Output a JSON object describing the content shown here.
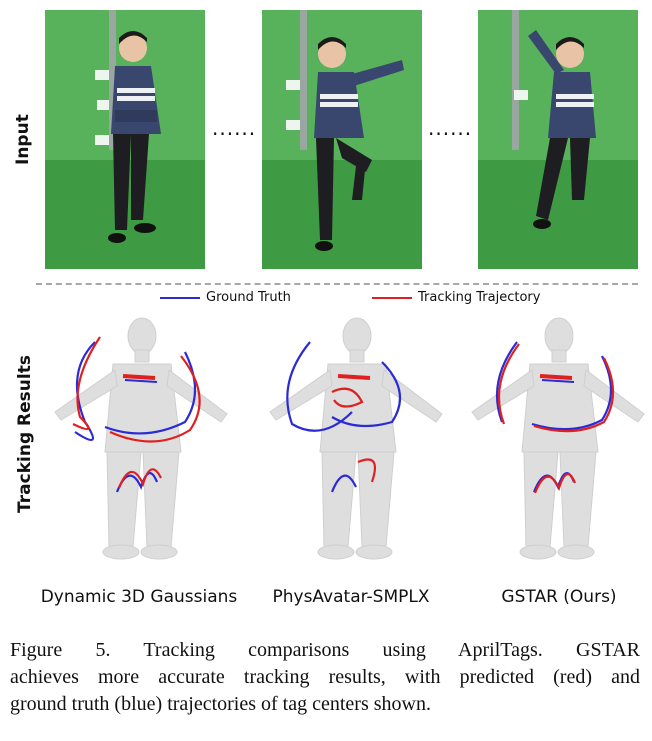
{
  "figure": {
    "row_labels": {
      "input": "Input",
      "tracking": "Tracking Results"
    },
    "ellipsis": "......",
    "legend": [
      {
        "label": "Ground Truth",
        "color": "#2b2bd6"
      },
      {
        "label": "Tracking Trajectory",
        "color": "#e02020"
      }
    ],
    "methods": [
      "Dynamic 3D Gaussians",
      "PhysAvatar-SMPLX",
      "GSTAR (Ours)"
    ],
    "colors": {
      "green_screen": "#4fae54",
      "sweater": "#39466e",
      "avatar": "#dedede"
    }
  },
  "caption": {
    "line1": "Figure 5.  Tracking comparisons using AprilTags.  GSTAR",
    "line2": "achieves more accurate tracking results, with predicted (red) and",
    "line3": "ground truth (blue) trajectories of tag centers shown."
  }
}
